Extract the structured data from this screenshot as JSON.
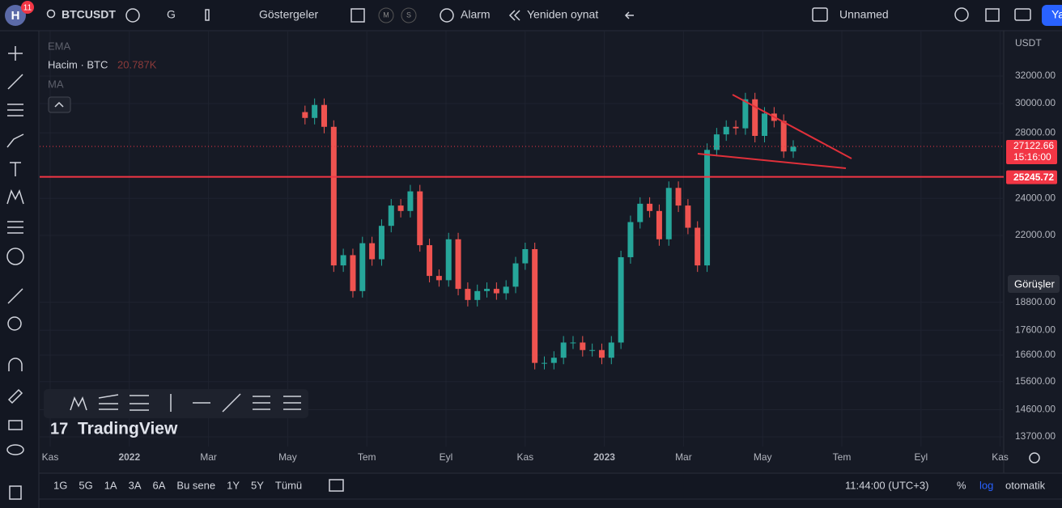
{
  "header": {
    "avatar": "H",
    "badge": "11",
    "symbol": "BTCUSDT",
    "interval": "G",
    "indicators": "Göstergeler",
    "m": "M",
    "s": "S",
    "alert": "Alarm",
    "replay": "Yeniden oynat",
    "layout": "Unnamed",
    "publish": "Ya"
  },
  "legend": {
    "ema": "EMA",
    "volume": "Hacim · BTC",
    "volume_value": "20.787K",
    "ma": "MA"
  },
  "chart_data": {
    "type": "candlestick",
    "currency": "USDT",
    "log_scale": true,
    "ylim": [
      13390,
      35600
    ],
    "yticks": [
      {
        "value": 32000,
        "label": "32000.00"
      },
      {
        "value": 30000,
        "label": "30000.00"
      },
      {
        "value": 28000,
        "label": "28000.00"
      },
      {
        "value": 24000,
        "label": "24000.00"
      },
      {
        "value": 22000,
        "label": "22000.00"
      },
      {
        "value": 18800,
        "label": "18800.00"
      },
      {
        "value": 17600,
        "label": "17600.00"
      },
      {
        "value": 16600,
        "label": "16600.00"
      },
      {
        "value": 15600,
        "label": "15600.00"
      },
      {
        "value": 14600,
        "label": "14600.00"
      },
      {
        "value": 13700,
        "label": "13700.00"
      }
    ],
    "time_labels": [
      "Kas",
      "2022",
      "Mar",
      "May",
      "Tem",
      "Eyl",
      "Kas",
      "2023",
      "Mar",
      "May",
      "Tem",
      "Eyl",
      "Kas"
    ],
    "closes": [
      29400,
      29000,
      29900,
      28400,
      20500,
      21000,
      19300,
      21600,
      20800,
      22500,
      23600,
      23300,
      24400,
      21500,
      20000,
      19800,
      21800,
      19400,
      18900,
      19300,
      19400,
      19200,
      19500,
      20600,
      21300,
      16300,
      16300,
      16500,
      17100,
      17100,
      16800,
      16800,
      16500,
      17100,
      20900,
      22700,
      23700,
      23300,
      21800,
      24600,
      23600,
      22400,
      20500,
      26900,
      27900,
      28400,
      28300,
      30300,
      27800,
      29300,
      28800,
      26800,
      27100
    ],
    "last_price": {
      "value": 27122.66,
      "label": "27122.66",
      "countdown": "15:16:00"
    },
    "level": {
      "value": 25245.72,
      "label": "25245.72"
    },
    "views": "Görüşler"
  },
  "footer": {
    "ranges": [
      "1G",
      "5G",
      "1A",
      "3A",
      "6A",
      "Bu sene",
      "1Y",
      "5Y",
      "Tümü"
    ],
    "clock": "11:44:00 (UTC+3)",
    "percent": "%",
    "log": "log",
    "auto": "otomatik"
  },
  "brand": "TradingView"
}
